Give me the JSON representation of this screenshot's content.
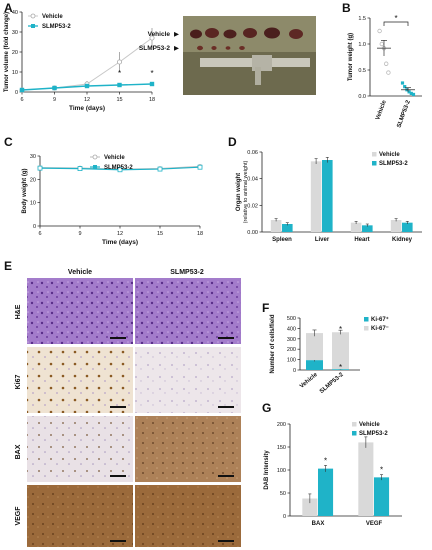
{
  "colors": {
    "vehicle": "#d9d9d9",
    "vehicle_line": "#c8c8c8",
    "slmp": "#1fb3c8",
    "axis": "#222222",
    "he_bg": "#9b6fc4",
    "ihc_bg": "#efe5d8",
    "vegf_veh_bg": "#9a6a3a",
    "vegf_slmp_bg": "#a87848",
    "bax_slmp_bg": "#b48a62",
    "photo_bg": "#6e6a4a"
  },
  "panels": {
    "A": "A",
    "B": "B",
    "C": "C",
    "D": "D",
    "E": "E",
    "F": "F",
    "G": "G"
  },
  "photo": {
    "vehicle_label": "Vehicle",
    "slmp_label": "SLMP53-2"
  },
  "micro": {
    "col_vehicle": "Vehicle",
    "col_slmp": "SLMP53-2",
    "rows": [
      "H&E",
      "Ki67",
      "BAX",
      "VEGF"
    ]
  },
  "chart_data": [
    {
      "id": "A",
      "type": "line",
      "xlabel": "Time (days)",
      "ylabel": "Tumor volume (fold change)",
      "xticks": [
        6,
        9,
        12,
        15,
        18
      ],
      "yticks": [
        0,
        10,
        20,
        30,
        40
      ],
      "xlim": [
        6,
        18
      ],
      "ylim": [
        0,
        40
      ],
      "legend": [
        "Vehicle",
        "SLMP53-2"
      ],
      "legend_position": "top-left",
      "series": [
        {
          "name": "Vehicle",
          "x": [
            6,
            9,
            12,
            15,
            18
          ],
          "y": [
            1,
            2,
            4,
            15,
            27
          ],
          "err": [
            0.3,
            0.5,
            1.5,
            5,
            5
          ]
        },
        {
          "name": "SLMP53-2",
          "x": [
            6,
            9,
            12,
            15,
            18
          ],
          "y": [
            1,
            2,
            3,
            3.5,
            4
          ],
          "err": [
            0.2,
            0.3,
            0.5,
            0.5,
            0.6
          ]
        }
      ],
      "annotations": [
        {
          "x": 15,
          "text": "*"
        },
        {
          "x": 18,
          "text": "*"
        }
      ]
    },
    {
      "id": "B",
      "type": "scatter",
      "ylabel": "Tumor weight (g)",
      "categories": [
        "Vehicle",
        "SLMP53-2"
      ],
      "yticks": [
        0.0,
        0.5,
        1.0,
        1.5
      ],
      "ylim": [
        0,
        1.5
      ],
      "points": {
        "Vehicle": [
          1.25,
          1.0,
          0.92,
          0.62,
          0.45
        ],
        "SLMP53-2": [
          0.25,
          0.18,
          0.12,
          0.08,
          0.05,
          0.03
        ]
      },
      "means": [
        0.92,
        0.12
      ],
      "sem": [
        0.15,
        0.04
      ],
      "significance": "*"
    },
    {
      "id": "C",
      "type": "line",
      "xlabel": "Time (days)",
      "ylabel": "Body weight (g)",
      "xticks": [
        6,
        9,
        12,
        15,
        18
      ],
      "yticks": [
        0,
        10,
        20,
        30
      ],
      "xlim": [
        6,
        18
      ],
      "ylim": [
        0,
        30
      ],
      "legend": [
        "Vehicle",
        "SLMP53-2"
      ],
      "legend_position": "top-center",
      "series": [
        {
          "name": "Vehicle",
          "x": [
            6,
            9,
            12,
            15,
            18
          ],
          "y": [
            25.0,
            24.8,
            24.3,
            24.6,
            25.5
          ]
        },
        {
          "name": "SLMP53-2",
          "x": [
            6,
            9,
            12,
            15,
            18
          ],
          "y": [
            24.8,
            24.6,
            24.1,
            24.4,
            25.2
          ]
        }
      ]
    },
    {
      "id": "D",
      "type": "bar",
      "ylabel": "Organ weight (relative to animal weight)",
      "categories": [
        "Spleen",
        "Liver",
        "Heart",
        "Kidney"
      ],
      "yticks": [
        "0.00",
        "0.02",
        "0.04",
        "0.06"
      ],
      "ylim": [
        0,
        0.06
      ],
      "legend": [
        "Vehicle",
        "SLMP53-2"
      ],
      "legend_position": "top-right",
      "series": [
        {
          "name": "Vehicle",
          "values": [
            0.009,
            0.053,
            0.007,
            0.009
          ],
          "err": [
            0.001,
            0.002,
            0.001,
            0.001
          ]
        },
        {
          "name": "SLMP53-2",
          "values": [
            0.006,
            0.054,
            0.005,
            0.007
          ],
          "err": [
            0.001,
            0.002,
            0.001,
            0.001
          ]
        }
      ]
    },
    {
      "id": "F",
      "type": "bar",
      "stacked": true,
      "ylabel": "Number of cells/field",
      "categories": [
        "Vehicle",
        "SLMP53-2"
      ],
      "yticks": [
        0,
        100,
        200,
        300,
        400,
        500
      ],
      "ylim": [
        0,
        500
      ],
      "legend": [
        "Ki-67⁺",
        "Ki-67⁻"
      ],
      "legend_position": "top-right",
      "series": [
        {
          "name": "Ki-67⁺",
          "values": [
            95,
            8
          ],
          "err": [
            12,
            3
          ]
        },
        {
          "name": "Ki-67⁻",
          "values": [
            260,
            355
          ],
          "err": [
            30,
            20
          ]
        }
      ],
      "annotations": [
        {
          "category": "SLMP53-2",
          "series": "Ki-67⁺",
          "text": "*"
        },
        {
          "category": "SLMP53-2",
          "series": "Ki-67⁻",
          "text": "*"
        }
      ]
    },
    {
      "id": "G",
      "type": "bar",
      "ylabel": "DAB Intensity",
      "categories": [
        "BAX",
        "VEGF"
      ],
      "yticks": [
        0,
        50,
        100,
        150,
        200
      ],
      "ylim": [
        0,
        200
      ],
      "legend": [
        "Vehicle",
        "SLMP53-2"
      ],
      "legend_position": "top-right",
      "series": [
        {
          "name": "Vehicle",
          "values": [
            38,
            160
          ],
          "err": [
            10,
            12
          ]
        },
        {
          "name": "SLMP53-2",
          "values": [
            103,
            84
          ],
          "err": [
            7,
            6
          ]
        }
      ],
      "annotations": [
        {
          "category": "BAX",
          "text": "*"
        },
        {
          "category": "VEGF",
          "text": "*"
        }
      ]
    }
  ]
}
